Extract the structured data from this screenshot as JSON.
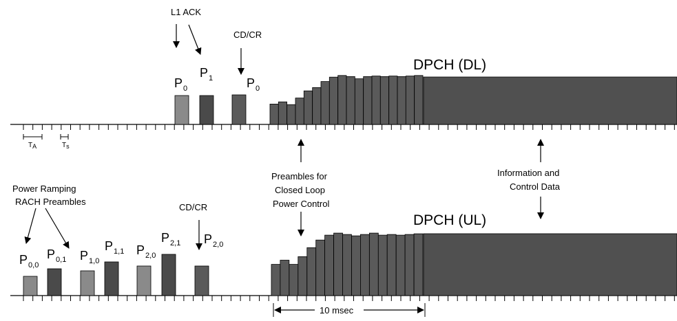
{
  "timeline_dl": {
    "labels": {
      "l1_ack": "L1 ACK",
      "cd_cr": "CD/CR",
      "p0_first": "P",
      "p0_first_sub": "0",
      "p1": "P",
      "p1_sub": "1",
      "p0_second": "P",
      "p0_second_sub": "0",
      "dpch": "DPCH (DL)",
      "t_a": "T",
      "t_a_sub": "A",
      "t_s": "T",
      "t_s_sub": "s"
    },
    "colors": {
      "light_bar": "#8a8a8a",
      "dark_bar": "#4a4a4a",
      "ramp_bar": "#5a5a5a",
      "block": "#505050"
    }
  },
  "timeline_ul": {
    "labels": {
      "power_ramping_1": "Power Ramping",
      "power_ramping_2": "RACH Preambles",
      "cd_cr": "CD/CR",
      "p00": "P",
      "p00_sub": "0,0",
      "p01": "P",
      "p01_sub": "0,1",
      "p10": "P",
      "p10_sub": "1,0",
      "p11": "P",
      "p11_sub": "1,1",
      "p20": "P",
      "p20_sub": "2,0",
      "p21": "P",
      "p21_sub": "2,1",
      "p20b": "P",
      "p20b_sub": "2,0",
      "dpch": "DPCH (UL)"
    }
  },
  "center": {
    "preambles_1": "Preambles for",
    "preambles_2": "Closed Loop",
    "preambles_3": "Power Control",
    "info_1": "Information and",
    "info_2": "Control Data",
    "duration": "10 msec"
  },
  "diagram_model": {
    "dl_ramp_levels": [
      0.37,
      0.41,
      0.36,
      0.48,
      0.61,
      0.67,
      0.78,
      0.86,
      0.89,
      0.87,
      0.83,
      0.87,
      0.88,
      0.87,
      0.88,
      0.87,
      0.88,
      0.89
    ],
    "ul_ramp_levels": [
      0.45,
      0.51,
      0.45,
      0.56,
      0.69,
      0.8,
      0.87,
      0.9,
      0.88,
      0.86,
      0.88,
      0.9,
      0.87,
      0.88,
      0.87,
      0.88,
      0.89
    ]
  }
}
